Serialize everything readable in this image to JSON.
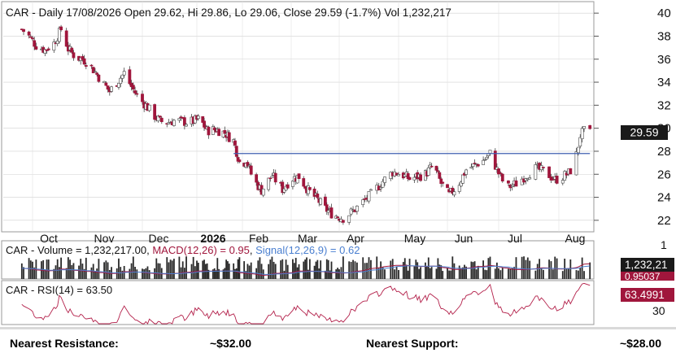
{
  "chart_data": {
    "type": "candlestick",
    "title": "CAR - Daily 17/08/2026 Open 29.62, Hi 29.86, Lo 29.06, Close 29.59 (-1.7%) Vol 1,232,217",
    "price_axis": {
      "ylim": [
        21,
        41
      ],
      "ticks": [
        "22",
        "24",
        "26",
        "28",
        "30",
        "32",
        "34",
        "36",
        "38",
        "40"
      ]
    },
    "x_axis": {
      "labels": [
        "Oct",
        "Nov",
        "Dec",
        "2026",
        "Feb",
        "Mar",
        "Apr",
        "May",
        "Jun",
        "Jul",
        "Aug"
      ]
    },
    "last_price_label": "29.59",
    "resistance_line": {
      "value": 27.8,
      "start": "Feb",
      "end": "Aug"
    },
    "price_series": [
      [
        "2025-09-25",
        38.6
      ],
      [
        "2025-09-29",
        38.0
      ],
      [
        "2025-10-03",
        37.2
      ],
      [
        "2025-10-08",
        36.8
      ],
      [
        "2025-10-13",
        37.4
      ],
      [
        "2025-10-17",
        38.6
      ],
      [
        "2025-10-21",
        36.9
      ],
      [
        "2025-10-25",
        36.2
      ],
      [
        "2025-10-29",
        36.0
      ],
      [
        "2025-11-01",
        35.7
      ],
      [
        "2025-11-05",
        34.9
      ],
      [
        "2025-11-09",
        34.0
      ],
      [
        "2025-11-13",
        33.2
      ],
      [
        "2025-11-17",
        34.0
      ],
      [
        "2025-11-21",
        34.8
      ],
      [
        "2025-11-25",
        33.6
      ],
      [
        "2025-11-29",
        32.6
      ],
      [
        "2025-12-03",
        32.0
      ],
      [
        "2025-12-07",
        31.2
      ],
      [
        "2025-12-11",
        30.6
      ],
      [
        "2025-12-15",
        30.5
      ],
      [
        "2025-12-20",
        30.7
      ],
      [
        "2025-12-27",
        30.5
      ],
      [
        "2026-01-03",
        30.8
      ],
      [
        "2026-01-08",
        29.8
      ],
      [
        "2026-01-14",
        29.9
      ],
      [
        "2026-01-20",
        29.6
      ],
      [
        "2026-01-26",
        28.9
      ],
      [
        "2026-01-31",
        26.6
      ],
      [
        "2026-02-03",
        27.3
      ],
      [
        "2026-02-07",
        25.6
      ],
      [
        "2026-02-12",
        24.6
      ],
      [
        "2026-02-18",
        25.9
      ],
      [
        "2026-02-24",
        24.7
      ],
      [
        "2026-03-01",
        25.6
      ],
      [
        "2026-03-06",
        25.8
      ],
      [
        "2026-03-12",
        24.6
      ],
      [
        "2026-03-18",
        23.8
      ],
      [
        "2026-03-23",
        23.0
      ],
      [
        "2026-03-28",
        22.5
      ],
      [
        "2026-04-03",
        22.2
      ],
      [
        "2026-04-08",
        22.8
      ],
      [
        "2026-04-13",
        23.6
      ],
      [
        "2026-04-18",
        24.4
      ],
      [
        "2026-04-23",
        25.4
      ],
      [
        "2026-04-28",
        26.2
      ],
      [
        "2026-05-03",
        26.0
      ],
      [
        "2026-05-08",
        25.6
      ],
      [
        "2026-05-13",
        25.8
      ],
      [
        "2026-05-18",
        26.0
      ],
      [
        "2026-05-23",
        26.8
      ],
      [
        "2026-05-28",
        25.2
      ],
      [
        "2026-06-02",
        24.2
      ],
      [
        "2026-06-07",
        25.0
      ],
      [
        "2026-06-12",
        26.4
      ],
      [
        "2026-06-17",
        26.8
      ],
      [
        "2026-06-22",
        27.2
      ],
      [
        "2026-06-26",
        27.8
      ],
      [
        "2026-06-30",
        26.4
      ],
      [
        "2026-07-05",
        24.8
      ],
      [
        "2026-07-10",
        25.2
      ],
      [
        "2026-07-15",
        25.9
      ],
      [
        "2026-07-20",
        26.5
      ],
      [
        "2026-07-25",
        26.2
      ],
      [
        "2026-07-30",
        25.5
      ],
      [
        "2026-08-03",
        25.8
      ],
      [
        "2026-08-06",
        26.1
      ],
      [
        "2026-08-09",
        26.8
      ],
      [
        "2026-08-12",
        29.4
      ],
      [
        "2026-08-15",
        29.9
      ],
      [
        "2026-08-17",
        29.59
      ]
    ],
    "macd_panel": {
      "title_prefix": "CAR - Volume = 1,232,217.00, ",
      "macd_label": "MACD(12,26) = 0.95",
      "signal_label": "Signal(12,26,9) = 0.62",
      "ticks": [
        "1"
      ],
      "value_labels": [
        "1,232,21",
        "0.95037"
      ]
    },
    "rsi_panel": {
      "title": "CAR - RSI(14) = 63.50",
      "ylim": [
        28,
        76
      ],
      "ticks": [
        "30"
      ],
      "value_label": "63.4991"
    }
  },
  "footer": {
    "resistance_label": "Nearest Resistance:",
    "resistance_value": "~$32.00",
    "support_label": "Nearest Support:",
    "support_value": "~$28.00"
  },
  "colors": {
    "up": "#ffffff",
    "down": "#a0163c",
    "outline": "#555555",
    "resistance": "#3f5fb0",
    "macd": "#a0163c",
    "signal": "#4a7fd0"
  }
}
